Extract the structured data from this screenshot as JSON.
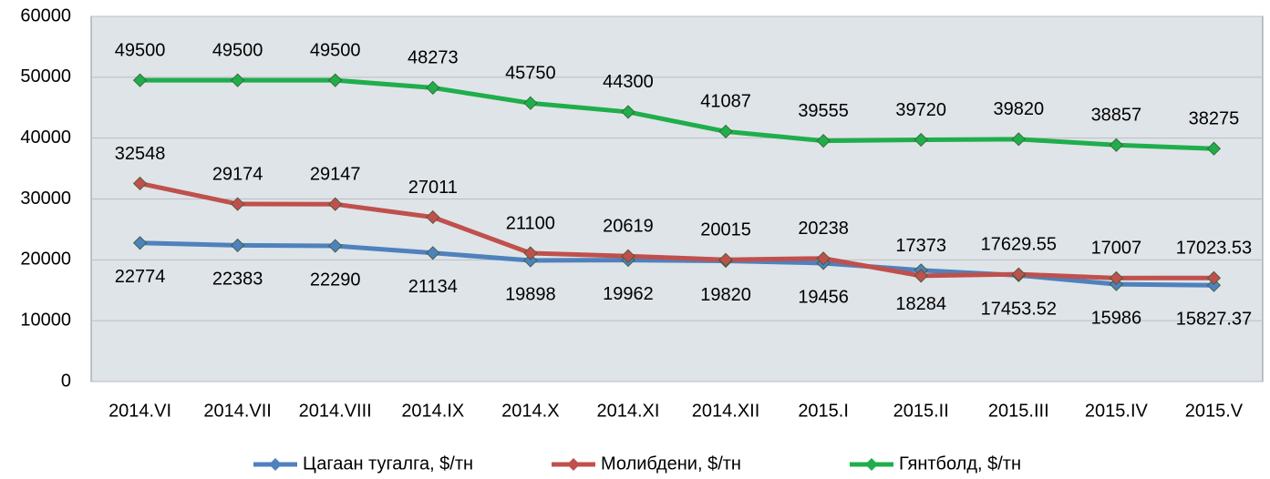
{
  "chart_data": {
    "type": "line",
    "categories": [
      "2014.VI",
      "2014.VII",
      "2014.VIII",
      "2014.IX",
      "2014.X",
      "2014.XI",
      "2014.XII",
      "2015.I",
      "2015.II",
      "2015.III",
      "2015.IV",
      "2015.V"
    ],
    "series": [
      {
        "name": "Цагаан тугалга, $/тн",
        "color": "#4f81bd",
        "values": [
          22774,
          22383,
          22290,
          21134,
          19898,
          19962,
          19820,
          19456,
          18284,
          17453.52,
          15986,
          15827.37
        ]
      },
      {
        "name": "Молибдени, $/тн",
        "color": "#c0504d",
        "values": [
          32548,
          29174,
          29147,
          27011,
          21100,
          20619,
          20015,
          20238,
          17373,
          17629.55,
          17007,
          17023.53
        ]
      },
      {
        "name": "Гянтболд, $/тн",
        "color": "#1fae4b",
        "values": [
          49500,
          49500,
          49500,
          48273,
          45750,
          44300,
          41087,
          39555,
          39720,
          39820,
          38857,
          38275
        ]
      }
    ],
    "ylim": [
      0,
      60000
    ],
    "yticks": [
      0,
      10000,
      20000,
      30000,
      40000,
      50000,
      60000
    ],
    "grid": true,
    "legend": "bottom"
  }
}
